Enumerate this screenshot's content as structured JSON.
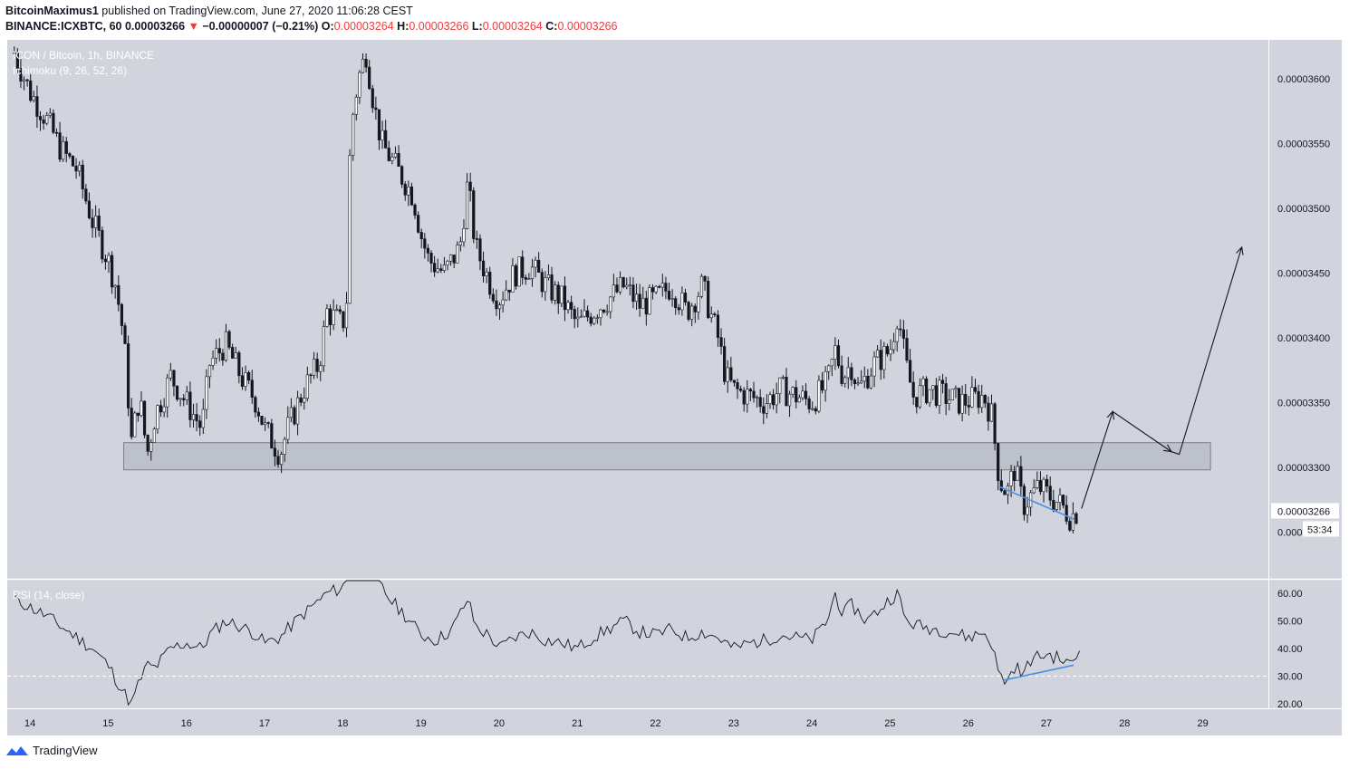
{
  "header": {
    "author": "BitcoinMaximus1",
    "published_text": "published on TradingView.com, June 27, 2020 11:06:28 CEST",
    "symbol_line": "BINANCE:ICXBTC, 60",
    "last_price": "0.00003266",
    "change_arrow": "▼",
    "change": "−0.00000007 (−0.21%)",
    "o_label": "O:",
    "o_value": "0.00003264",
    "h_label": "H:",
    "h_value": "0.00003266",
    "l_label": "L:",
    "l_value": "0.00003264",
    "c_label": "C:",
    "c_value": "0.00003266"
  },
  "footer": {
    "brand": "TradingView"
  },
  "colors": {
    "panel_bg": "#d1d4dc",
    "text": "#131722",
    "down": "#ef3b3b",
    "blue_line": "#4a90e2",
    "zone_fill": "#b8bcc6",
    "zone_stroke": "#7c7f88"
  },
  "chart_data": {
    "type": "candlestick",
    "title": "ICON / Bitcoin, 1h, BINANCE",
    "indicator_label": "Ichimoku (9, 26, 52, 26)",
    "x_ticks": [
      "14",
      "15",
      "16",
      "17",
      "18",
      "19",
      "20",
      "21",
      "22",
      "23",
      "24",
      "25",
      "26",
      "27",
      "28",
      "29"
    ],
    "y_ticks": [
      "0.00003600",
      "0.00003550",
      "0.00003500",
      "0.00003450",
      "0.00003400",
      "0.00003350",
      "0.00003300",
      "0.000032"
    ],
    "ylim": [
      3.21e-05,
      3.63e-05
    ],
    "current_price_label": "0.00003266",
    "countdown_label": "53:34",
    "price_path": [
      [
        13.8,
        3620
      ],
      [
        14.0,
        3590
      ],
      [
        14.2,
        3570
      ],
      [
        14.4,
        3545
      ],
      [
        14.6,
        3530
      ],
      [
        14.8,
        3490
      ],
      [
        15.0,
        3460
      ],
      [
        15.1,
        3440
      ],
      [
        15.2,
        3400
      ],
      [
        15.3,
        3320
      ],
      [
        15.4,
        3355
      ],
      [
        15.5,
        3310
      ],
      [
        15.6,
        3340
      ],
      [
        15.8,
        3370
      ],
      [
        16.0,
        3350
      ],
      [
        16.2,
        3330
      ],
      [
        16.3,
        3380
      ],
      [
        16.5,
        3395
      ],
      [
        16.7,
        3370
      ],
      [
        16.9,
        3350
      ],
      [
        17.0,
        3330
      ],
      [
        17.2,
        3310
      ],
      [
        17.3,
        3330
      ],
      [
        17.5,
        3360
      ],
      [
        17.7,
        3380
      ],
      [
        17.8,
        3420
      ],
      [
        18.0,
        3410
      ],
      [
        18.05,
        3430
      ],
      [
        18.1,
        3560
      ],
      [
        18.2,
        3600
      ],
      [
        18.3,
        3620
      ],
      [
        18.4,
        3580
      ],
      [
        18.5,
        3550
      ],
      [
        18.7,
        3530
      ],
      [
        18.9,
        3510
      ],
      [
        19.0,
        3480
      ],
      [
        19.1,
        3460
      ],
      [
        19.3,
        3450
      ],
      [
        19.5,
        3470
      ],
      [
        19.6,
        3520
      ],
      [
        19.7,
        3470
      ],
      [
        19.9,
        3440
      ],
      [
        20.0,
        3430
      ],
      [
        20.2,
        3450
      ],
      [
        20.4,
        3455
      ],
      [
        20.6,
        3440
      ],
      [
        20.8,
        3430
      ],
      [
        21.0,
        3410
      ],
      [
        21.2,
        3420
      ],
      [
        21.4,
        3430
      ],
      [
        21.6,
        3440
      ],
      [
        21.8,
        3425
      ],
      [
        22.0,
        3430
      ],
      [
        22.2,
        3440
      ],
      [
        22.4,
        3420
      ],
      [
        22.6,
        3440
      ],
      [
        22.8,
        3400
      ],
      [
        22.9,
        3370
      ],
      [
        23.0,
        3360
      ],
      [
        23.2,
        3355
      ],
      [
        23.4,
        3350
      ],
      [
        23.6,
        3360
      ],
      [
        23.8,
        3355
      ],
      [
        24.0,
        3350
      ],
      [
        24.2,
        3365
      ],
      [
        24.3,
        3390
      ],
      [
        24.4,
        3370
      ],
      [
        24.5,
        3380
      ],
      [
        24.6,
        3360
      ],
      [
        24.8,
        3380
      ],
      [
        25.0,
        3390
      ],
      [
        25.1,
        3420
      ],
      [
        25.2,
        3380
      ],
      [
        25.3,
        3355
      ],
      [
        25.5,
        3360
      ],
      [
        25.7,
        3355
      ],
      [
        25.9,
        3350
      ],
      [
        26.2,
        3355
      ],
      [
        26.3,
        3340
      ],
      [
        26.4,
        3290
      ],
      [
        26.5,
        3280
      ],
      [
        26.6,
        3300
      ],
      [
        26.7,
        3270
      ],
      [
        26.9,
        3285
      ],
      [
        27.0,
        3280
      ],
      [
        27.2,
        3270
      ],
      [
        27.3,
        3262
      ],
      [
        27.4,
        3266
      ]
    ],
    "rsi": {
      "label": "RSI (14, close)",
      "y_ticks": [
        "60.00",
        "50.00",
        "40.00",
        "30.00",
        "20.00"
      ],
      "ylim": [
        18,
        66
      ],
      "reference_level": 30,
      "path": [
        [
          13.8,
          58
        ],
        [
          14.0,
          55
        ],
        [
          14.2,
          52
        ],
        [
          14.4,
          48
        ],
        [
          14.6,
          44
        ],
        [
          14.8,
          40
        ],
        [
          15.0,
          34
        ],
        [
          15.2,
          24
        ],
        [
          15.3,
          20
        ],
        [
          15.4,
          28
        ],
        [
          15.5,
          34
        ],
        [
          15.6,
          33
        ],
        [
          15.8,
          40
        ],
        [
          16.0,
          42
        ],
        [
          16.2,
          40
        ],
        [
          16.3,
          45
        ],
        [
          16.5,
          50
        ],
        [
          16.7,
          48
        ],
        [
          16.9,
          45
        ],
        [
          17.0,
          42
        ],
        [
          17.2,
          44
        ],
        [
          17.4,
          50
        ],
        [
          17.6,
          55
        ],
        [
          17.8,
          60
        ],
        [
          18.0,
          62
        ],
        [
          18.1,
          70
        ],
        [
          18.2,
          75
        ],
        [
          18.3,
          72
        ],
        [
          18.4,
          66
        ],
        [
          18.6,
          58
        ],
        [
          18.8,
          52
        ],
        [
          19.0,
          45
        ],
        [
          19.2,
          43
        ],
        [
          19.4,
          47
        ],
        [
          19.6,
          58
        ],
        [
          19.7,
          48
        ],
        [
          19.9,
          44
        ],
        [
          20.0,
          40
        ],
        [
          20.2,
          44
        ],
        [
          20.4,
          46
        ],
        [
          20.6,
          43
        ],
        [
          20.8,
          42
        ],
        [
          21.0,
          40
        ],
        [
          21.2,
          44
        ],
        [
          21.4,
          47
        ],
        [
          21.6,
          50
        ],
        [
          21.8,
          46
        ],
        [
          22.0,
          45
        ],
        [
          22.2,
          47
        ],
        [
          22.4,
          44
        ],
        [
          22.6,
          46
        ],
        [
          22.8,
          44
        ],
        [
          23.0,
          40
        ],
        [
          23.2,
          42
        ],
        [
          23.4,
          43
        ],
        [
          23.6,
          45
        ],
        [
          23.8,
          44
        ],
        [
          24.0,
          43
        ],
        [
          24.2,
          50
        ],
        [
          24.3,
          60
        ],
        [
          24.4,
          52
        ],
        [
          24.5,
          56
        ],
        [
          24.7,
          50
        ],
        [
          24.9,
          55
        ],
        [
          25.0,
          58
        ],
        [
          25.1,
          60
        ],
        [
          25.2,
          50
        ],
        [
          25.4,
          48
        ],
        [
          25.6,
          47
        ],
        [
          25.8,
          46
        ],
        [
          26.0,
          44
        ],
        [
          26.2,
          46
        ],
        [
          26.3,
          42
        ],
        [
          26.4,
          30
        ],
        [
          26.5,
          28
        ],
        [
          26.6,
          34
        ],
        [
          26.7,
          30
        ],
        [
          26.8,
          36
        ],
        [
          27.0,
          38
        ],
        [
          27.2,
          36
        ],
        [
          27.3,
          34
        ],
        [
          27.45,
          40
        ]
      ]
    },
    "support_zone": {
      "from_x": 15.2,
      "to_x": 29.1,
      "low": 3.298e-05,
      "high": 3.319e-05
    },
    "price_trendline": [
      [
        26.4,
        3285
      ],
      [
        27.35,
        3260
      ]
    ],
    "rsi_trendline": [
      [
        26.45,
        28.5
      ],
      [
        27.35,
        34
      ]
    ],
    "projection": [
      [
        27.45,
        3268
      ],
      [
        27.85,
        3343
      ],
      [
        28.6,
        3312
      ],
      [
        28.7,
        3310
      ],
      [
        29.5,
        3470
      ]
    ]
  }
}
